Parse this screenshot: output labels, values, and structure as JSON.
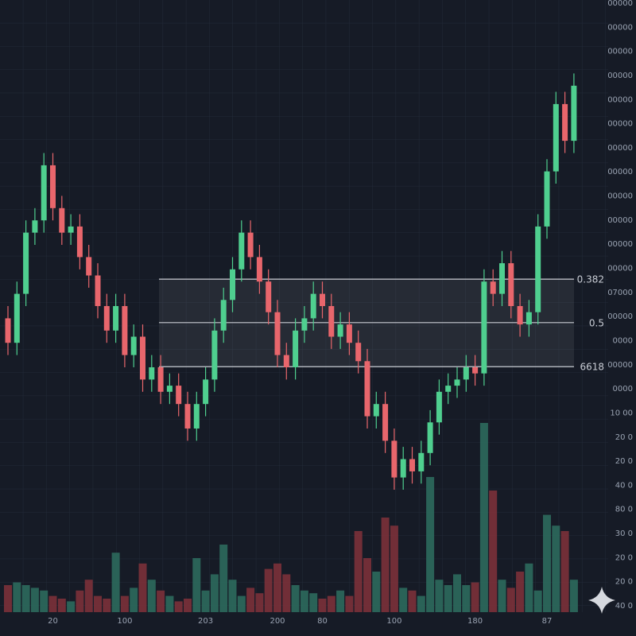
{
  "chart_data": {
    "type": "candlestick",
    "categories": [
      null,
      null,
      null,
      null,
      null,
      "20",
      null,
      null,
      null,
      null,
      null,
      null,
      null,
      "100",
      null,
      null,
      null,
      null,
      null,
      null,
      null,
      null,
      "203",
      null,
      null,
      null,
      null,
      null,
      null,
      null,
      "200",
      null,
      null,
      null,
      null,
      "80",
      null,
      null,
      null,
      null,
      null,
      null,
      null,
      "100",
      null,
      null,
      null,
      null,
      null,
      null,
      null,
      null,
      "180",
      null,
      null,
      null,
      null,
      null,
      null,
      null,
      "87",
      null,
      null,
      null
    ],
    "open": [
      48,
      44,
      52,
      62,
      64,
      73,
      66,
      62,
      63,
      58,
      55,
      50,
      46,
      50,
      42,
      45,
      38,
      40,
      36,
      37,
      34,
      30,
      34,
      38,
      46,
      51,
      56,
      62,
      58,
      54,
      49,
      42,
      40,
      46,
      48,
      52,
      50,
      45,
      47,
      44,
      41,
      32,
      34,
      28,
      22,
      25,
      23,
      26,
      31,
      36,
      37,
      38,
      40,
      39,
      54,
      52,
      57,
      50,
      47,
      49,
      63,
      72,
      83,
      77
    ],
    "high": [
      50,
      54,
      64,
      66,
      75,
      75,
      68,
      65,
      65,
      60,
      57,
      52,
      52,
      52,
      47,
      47,
      42,
      42,
      39,
      39,
      36,
      36,
      40,
      48,
      53,
      58,
      64,
      64,
      60,
      56,
      51,
      44,
      48,
      50,
      54,
      54,
      52,
      49,
      49,
      46,
      43,
      36,
      36,
      30,
      27,
      27,
      28,
      33,
      38,
      39,
      40,
      42,
      42,
      56,
      56,
      59,
      59,
      52,
      51,
      65,
      74,
      85,
      85,
      88
    ],
    "low": [
      42,
      42,
      50,
      60,
      62,
      64,
      60,
      60,
      56,
      53,
      48,
      44,
      44,
      40,
      40,
      36,
      36,
      34,
      34,
      32,
      28,
      28,
      32,
      36,
      44,
      49,
      54,
      56,
      52,
      47,
      40,
      38,
      38,
      44,
      46,
      48,
      43,
      43,
      42,
      39,
      30,
      30,
      26,
      20,
      20,
      21,
      21,
      24,
      29,
      34,
      35,
      36,
      37,
      37,
      50,
      50,
      48,
      45,
      45,
      47,
      61,
      70,
      75,
      75
    ],
    "close": [
      44,
      52,
      62,
      64,
      73,
      66,
      62,
      63,
      58,
      55,
      50,
      46,
      50,
      42,
      45,
      38,
      40,
      36,
      37,
      34,
      30,
      34,
      38,
      46,
      51,
      56,
      62,
      58,
      54,
      49,
      42,
      40,
      46,
      48,
      52,
      50,
      45,
      47,
      44,
      41,
      32,
      34,
      28,
      22,
      25,
      23,
      26,
      31,
      36,
      37,
      38,
      40,
      39,
      54,
      52,
      57,
      50,
      47,
      49,
      63,
      72,
      83,
      77,
      86
    ],
    "volume": [
      10,
      11,
      10,
      9,
      8,
      6,
      5,
      4,
      8,
      12,
      6,
      5,
      22,
      6,
      9,
      18,
      12,
      8,
      6,
      4,
      5,
      20,
      8,
      14,
      25,
      12,
      6,
      9,
      7,
      16,
      18,
      14,
      10,
      8,
      7,
      5,
      6,
      8,
      6,
      30,
      20,
      15,
      35,
      32,
      9,
      8,
      6,
      50,
      12,
      10,
      14,
      10,
      11,
      70,
      45,
      12,
      9,
      15,
      18,
      8,
      36,
      32,
      30,
      12
    ],
    "ylim": [
      0,
      100
    ],
    "volume_ylim": [
      0,
      100
    ],
    "up_color": "#4fcf8f",
    "down_color": "#e8666c",
    "volume_up_color": "#2c6a5d",
    "volume_down_color": "#7b313a",
    "fib_levels": [
      {
        "name": "0.382",
        "value": 54.4
      },
      {
        "name": "0.5",
        "value": 47.3
      },
      {
        "name": "6618",
        "value": 40.1
      }
    ],
    "y_axis_labels": [
      "00000",
      "00000",
      "00000",
      "00000",
      "00000",
      "00000",
      "00000",
      "00000",
      "00000",
      "00000",
      "00000",
      "00000",
      "07000",
      "00000",
      "0000",
      "00000",
      "0000",
      "10 00",
      "20 0",
      "20 0",
      "40 0",
      "80 0",
      "30 0",
      "20 0",
      "20 0",
      "40 0"
    ],
    "grid": true
  }
}
